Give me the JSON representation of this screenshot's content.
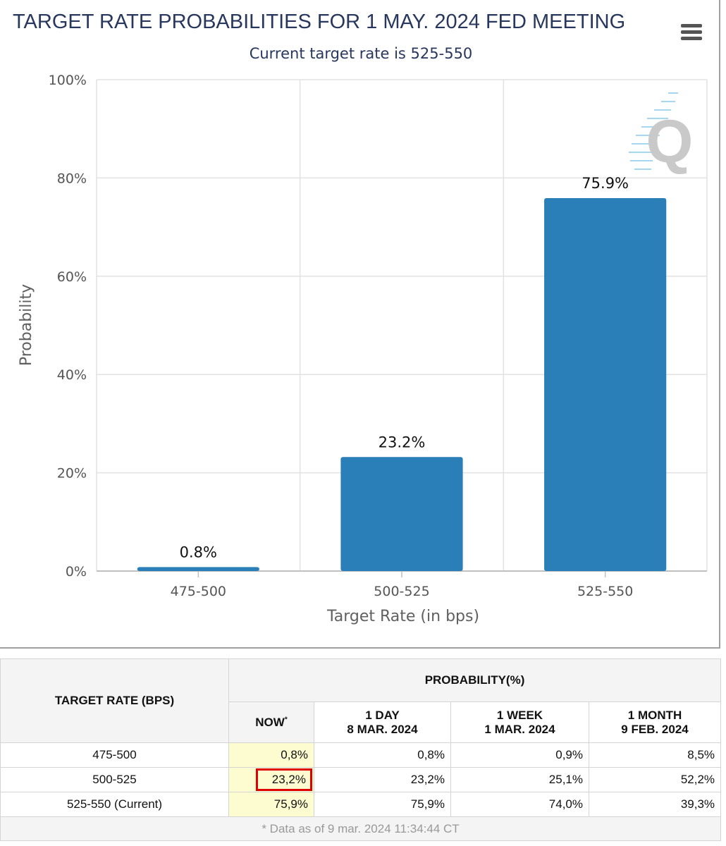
{
  "chart_data": {
    "type": "bar",
    "title": "TARGET RATE PROBABILITIES FOR 1 MAY. 2024 FED MEETING",
    "subtitle": "Current target rate is 525-550",
    "xlabel": "Target Rate (in bps)",
    "ylabel": "Probability",
    "categories": [
      "475-500",
      "500-525",
      "525-550"
    ],
    "values": [
      0.8,
      23.2,
      75.9
    ],
    "data_labels": [
      "0.8%",
      "23.2%",
      "75.9%"
    ],
    "ylim": [
      0,
      100
    ],
    "yticks": [
      0,
      20,
      40,
      60,
      80,
      100
    ],
    "ytick_labels": [
      "0%",
      "20%",
      "40%",
      "60%",
      "80%",
      "100%"
    ],
    "grid": true,
    "bar_color": "#2b7fb8",
    "watermark": "Q"
  },
  "table": {
    "rate_header": "TARGET RATE (BPS)",
    "prob_header": "PROBABILITY(%)",
    "columns": [
      {
        "line1": "NOW",
        "line2": "",
        "mark": "*"
      },
      {
        "line1": "1 DAY",
        "line2": "8 MAR. 2024"
      },
      {
        "line1": "1 WEEK",
        "line2": "1 MAR. 2024"
      },
      {
        "line1": "1 MONTH",
        "line2": "9 FEB. 2024"
      }
    ],
    "rows": [
      {
        "rate": "475-500",
        "values": [
          "0,8%",
          "0,8%",
          "0,9%",
          "8,5%"
        ]
      },
      {
        "rate": "500-525",
        "values": [
          "23,2%",
          "23,2%",
          "25,1%",
          "52,2%"
        ]
      },
      {
        "rate": "525-550 (Current)",
        "values": [
          "75,9%",
          "75,9%",
          "74,0%",
          "39,3%"
        ]
      }
    ],
    "footnote": "* Data as of 9 mar. 2024 11:34:44 CT",
    "highlight_color": "#e00000",
    "now_bg_color": "#fdfbd0"
  }
}
